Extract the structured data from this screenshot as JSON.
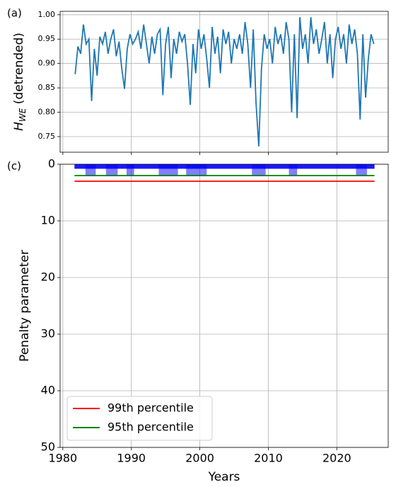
{
  "chart_data": [
    {
      "type": "line",
      "panel_label": "(a)",
      "ylabel": "H",
      "ylabel_sub": "WE",
      "ylabel_rest": " (detrended)",
      "xlim": [
        1979.6,
        2027.5
      ],
      "ylim": [
        0.718,
        1.007
      ],
      "xticks": [
        1980,
        1990,
        2000,
        2010,
        2020
      ],
      "xtick_labels": false,
      "yticks": [
        0.75,
        {
          "value": 0.8,
          "label": "0.80"
        },
        0.85,
        {
          "value": 0.9,
          "label": "0.90"
        },
        0.95,
        {
          "value": 1.0,
          "label": "1.00"
        }
      ],
      "grid": true,
      "x": [
        1981.8,
        1982.2,
        1982.6,
        1983,
        1983.4,
        1983.8,
        1984.2,
        1984.6,
        1985,
        1985.4,
        1985.8,
        1986.2,
        1986.6,
        1987,
        1987.4,
        1987.8,
        1988.2,
        1988.6,
        1989,
        1989.4,
        1989.8,
        1990.2,
        1990.6,
        1991,
        1991.4,
        1991.8,
        1992.2,
        1992.6,
        1993,
        1993.4,
        1993.8,
        1994.2,
        1994.6,
        1995,
        1995.4,
        1995.8,
        1996.2,
        1996.6,
        1997,
        1997.4,
        1997.8,
        1998.2,
        1998.6,
        1999,
        1999.4,
        1999.8,
        2000.2,
        2000.6,
        2001,
        2001.4,
        2001.8,
        2002.2,
        2002.6,
        2003,
        2003.4,
        2003.8,
        2004.2,
        2004.6,
        2005,
        2005.4,
        2005.8,
        2006.2,
        2006.6,
        2007,
        2007.4,
        2007.8,
        2008.2,
        2008.6,
        2009,
        2009.4,
        2009.8,
        2010.2,
        2010.6,
        2011,
        2011.4,
        2011.8,
        2012.2,
        2012.6,
        2013,
        2013.4,
        2013.8,
        2014.2,
        2014.6,
        2015,
        2015.4,
        2015.8,
        2016.2,
        2016.6,
        2017,
        2017.4,
        2017.8,
        2018.2,
        2018.6,
        2019,
        2019.4,
        2019.8,
        2020.2,
        2020.6,
        2021,
        2021.4,
        2021.8,
        2022.2,
        2022.6,
        2023,
        2023.4,
        2023.8,
        2024.2,
        2024.6,
        2025,
        2025.4
      ],
      "series": [
        {
          "color": "#1f77b4",
          "values": [
            0.878,
            0.935,
            0.92,
            0.98,
            0.94,
            0.95,
            0.823,
            0.93,
            0.875,
            0.955,
            0.94,
            0.965,
            0.92,
            0.95,
            0.97,
            0.915,
            0.945,
            0.89,
            0.848,
            0.93,
            0.96,
            0.94,
            0.95,
            0.965,
            0.93,
            0.98,
            0.94,
            0.9,
            0.955,
            0.92,
            0.96,
            0.97,
            0.835,
            0.94,
            0.975,
            0.87,
            0.95,
            0.92,
            0.965,
            0.945,
            0.96,
            0.9,
            0.815,
            0.94,
            0.88,
            0.97,
            0.93,
            0.96,
            0.91,
            0.85,
            0.975,
            0.92,
            0.955,
            0.88,
            0.97,
            0.94,
            0.965,
            0.9,
            0.95,
            0.93,
            0.96,
            0.92,
            0.985,
            0.94,
            0.85,
            0.97,
            0.82,
            0.73,
            0.89,
            0.96,
            0.93,
            0.95,
            0.9,
            0.975,
            0.94,
            0.96,
            0.92,
            0.985,
            0.95,
            0.8,
            0.96,
            0.788,
            0.995,
            0.93,
            0.96,
            0.9,
            0.995,
            0.94,
            0.97,
            0.92,
            0.95,
            0.985,
            0.9,
            0.96,
            0.87,
            0.95,
            0.975,
            0.93,
            0.96,
            0.9,
            0.98,
            0.94,
            0.97,
            0.92,
            0.785,
            0.96,
            0.83,
            0.91,
            0.96,
            0.94
          ]
        }
      ]
    },
    {
      "type": "segments",
      "panel_label": "(c)",
      "xlabel": "Years",
      "ylabel": "Penalty parameter",
      "xlim": [
        1979.6,
        2027.5
      ],
      "ylim": [
        0,
        50
      ],
      "y_inverted": true,
      "xticks": [
        1980,
        1990,
        2000,
        2010,
        2020
      ],
      "yticks": [
        0,
        10,
        20,
        30,
        40,
        50
      ],
      "grid": true,
      "legend": "lower left",
      "intervals": {
        "color": "#0000ff",
        "starts": [
          1981.7,
          1983.3,
          1986.3,
          1989.3,
          1994.0,
          1998.0,
          2007.6,
          2013.0,
          2022.8
        ],
        "ends": [
          2025.5,
          1984.8,
          1988.0,
          1990.4,
          1996.8,
          2001.0,
          2009.6,
          2014.2,
          2024.4
        ],
        "values": [
          0.8,
          2.1,
          2.1,
          2.1,
          2.1,
          2.1,
          2.1,
          2.1,
          2.1
        ]
      },
      "series": [
        {
          "name": "99th percentile",
          "color": "#ff0000",
          "x": [
            1981.7,
            2025.5
          ],
          "values": [
            3,
            3
          ]
        },
        {
          "name": "95th percentile",
          "color": "#008000",
          "x": [
            1981.7,
            2025.5
          ],
          "values": [
            2,
            2
          ]
        }
      ]
    }
  ]
}
